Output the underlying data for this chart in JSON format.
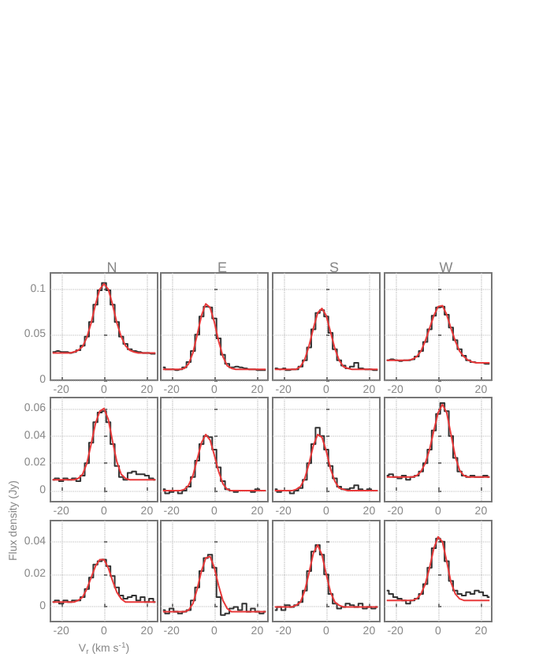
{
  "chart_data": [
    {
      "type": "line",
      "title": "N",
      "x": [
        -24,
        -22,
        -20,
        -18,
        -16,
        -14,
        -12,
        -10,
        -8,
        -6,
        -4,
        -2,
        0,
        2,
        4,
        6,
        8,
        10,
        12,
        14,
        16,
        18,
        20,
        22,
        24
      ],
      "xlim": [
        -25,
        25
      ],
      "xticks": [
        -20,
        0,
        20
      ],
      "ylim": [
        0,
        0.118
      ],
      "yticks": [
        0,
        0.05,
        0.1
      ],
      "grid": true,
      "series": [
        {
          "type": "step",
          "color": "#333333",
          "values": [
            0.031,
            0.032,
            0.031,
            0.031,
            0.03,
            0.031,
            0.033,
            0.038,
            0.048,
            0.064,
            0.083,
            0.099,
            0.107,
            0.099,
            0.083,
            0.064,
            0.048,
            0.04,
            0.034,
            0.032,
            0.031,
            0.03,
            0.03,
            0.029,
            0.029
          ]
        },
        {
          "type": "line",
          "color": "#e8393a",
          "values": [
            0.03,
            0.03,
            0.03,
            0.03,
            0.03,
            0.031,
            0.033,
            0.037,
            0.047,
            0.063,
            0.083,
            0.1,
            0.106,
            0.1,
            0.083,
            0.063,
            0.048,
            0.038,
            0.033,
            0.031,
            0.03,
            0.03,
            0.03,
            0.03,
            0.03
          ]
        }
      ]
    },
    {
      "type": "line",
      "title": "E",
      "x": [
        -24,
        -22,
        -20,
        -18,
        -16,
        -14,
        -12,
        -10,
        -8,
        -6,
        -4,
        -2,
        0,
        2,
        4,
        6,
        8,
        10,
        12,
        14,
        16,
        18,
        20,
        22,
        24
      ],
      "xlim": [
        -25,
        25
      ],
      "xticks": [
        -20,
        0,
        20
      ],
      "ylim": [
        0,
        0.118
      ],
      "yticks": [
        0,
        0.05,
        0.1
      ],
      "grid": true,
      "tick_labels": "x",
      "series": [
        {
          "type": "step",
          "color": "#333333",
          "values": [
            0.014,
            0.012,
            0.012,
            0.011,
            0.012,
            0.014,
            0.02,
            0.032,
            0.05,
            0.07,
            0.081,
            0.08,
            0.068,
            0.046,
            0.028,
            0.018,
            0.014,
            0.015,
            0.014,
            0.013,
            0.012,
            0.012,
            0.011,
            0.011,
            0.011
          ]
        },
        {
          "type": "line",
          "color": "#e8393a",
          "values": [
            0.012,
            0.012,
            0.012,
            0.012,
            0.012,
            0.013,
            0.018,
            0.03,
            0.05,
            0.071,
            0.084,
            0.08,
            0.064,
            0.043,
            0.026,
            0.016,
            0.013,
            0.012,
            0.012,
            0.012,
            0.012,
            0.012,
            0.012,
            0.012,
            0.012
          ]
        }
      ]
    },
    {
      "type": "line",
      "title": "S",
      "x": [
        -24,
        -22,
        -20,
        -18,
        -16,
        -14,
        -12,
        -10,
        -8,
        -6,
        -4,
        -2,
        0,
        2,
        4,
        6,
        8,
        10,
        12,
        14,
        16,
        18,
        20,
        22,
        24
      ],
      "xlim": [
        -25,
        25
      ],
      "xticks": [
        -20,
        0,
        20
      ],
      "ylim": [
        0,
        0.118
      ],
      "yticks": [
        0,
        0.05,
        0.1
      ],
      "grid": true,
      "tick_labels": "x",
      "series": [
        {
          "type": "step",
          "color": "#333333",
          "values": [
            0.013,
            0.012,
            0.013,
            0.011,
            0.012,
            0.012,
            0.015,
            0.022,
            0.036,
            0.056,
            0.074,
            0.077,
            0.07,
            0.052,
            0.034,
            0.022,
            0.016,
            0.013,
            0.015,
            0.019,
            0.013,
            0.012,
            0.012,
            0.011,
            0.011
          ]
        },
        {
          "type": "line",
          "color": "#e8393a",
          "values": [
            0.012,
            0.012,
            0.012,
            0.012,
            0.012,
            0.012,
            0.015,
            0.023,
            0.038,
            0.057,
            0.074,
            0.079,
            0.071,
            0.053,
            0.035,
            0.022,
            0.015,
            0.013,
            0.012,
            0.012,
            0.012,
            0.012,
            0.012,
            0.012,
            0.012
          ]
        }
      ]
    },
    {
      "type": "line",
      "title": "W",
      "x": [
        -24,
        -22,
        -20,
        -18,
        -16,
        -14,
        -12,
        -10,
        -8,
        -6,
        -4,
        -2,
        0,
        2,
        4,
        6,
        8,
        10,
        12,
        14,
        16,
        18,
        20,
        22,
        24
      ],
      "xlim": [
        -25,
        25
      ],
      "xticks": [
        -20,
        0,
        20
      ],
      "ylim": [
        0,
        0.118
      ],
      "yticks": [
        0,
        0.05,
        0.1
      ],
      "grid": true,
      "tick_labels": "x",
      "series": [
        {
          "type": "step",
          "color": "#333333",
          "values": [
            0.022,
            0.023,
            0.022,
            0.021,
            0.022,
            0.022,
            0.023,
            0.026,
            0.032,
            0.042,
            0.056,
            0.071,
            0.08,
            0.081,
            0.072,
            0.058,
            0.044,
            0.034,
            0.027,
            0.022,
            0.02,
            0.019,
            0.019,
            0.018,
            0.018
          ]
        },
        {
          "type": "line",
          "color": "#e8393a",
          "values": [
            0.022,
            0.022,
            0.022,
            0.022,
            0.022,
            0.022,
            0.023,
            0.026,
            0.032,
            0.043,
            0.057,
            0.071,
            0.081,
            0.082,
            0.072,
            0.057,
            0.043,
            0.032,
            0.026,
            0.022,
            0.02,
            0.019,
            0.019,
            0.019,
            0.019
          ]
        }
      ]
    },
    {
      "type": "line",
      "x": [
        -24,
        -22,
        -20,
        -18,
        -16,
        -14,
        -12,
        -10,
        -8,
        -6,
        -4,
        -2,
        0,
        2,
        4,
        6,
        8,
        10,
        12,
        14,
        16,
        18,
        20,
        22,
        24
      ],
      "xlim": [
        -25,
        25
      ],
      "xticks": [
        -20,
        0,
        20
      ],
      "ylim": [
        -0.008,
        0.068
      ],
      "yticks": [
        0,
        0.02,
        0.04,
        0.06
      ],
      "grid": true,
      "series": [
        {
          "type": "step",
          "color": "#333333",
          "values": [
            0.008,
            0.009,
            0.007,
            0.009,
            0.008,
            0.009,
            0.007,
            0.011,
            0.02,
            0.035,
            0.05,
            0.057,
            0.058,
            0.05,
            0.034,
            0.018,
            0.01,
            0.008,
            0.013,
            0.014,
            0.012,
            0.012,
            0.011,
            0.009,
            0.008
          ]
        },
        {
          "type": "line",
          "color": "#e8393a",
          "values": [
            0.008,
            0.008,
            0.008,
            0.008,
            0.008,
            0.008,
            0.009,
            0.012,
            0.02,
            0.034,
            0.049,
            0.058,
            0.06,
            0.052,
            0.036,
            0.021,
            0.012,
            0.009,
            0.008,
            0.008,
            0.008,
            0.008,
            0.008,
            0.008,
            0.008
          ]
        }
      ]
    },
    {
      "type": "line",
      "x": [
        -24,
        -22,
        -20,
        -18,
        -16,
        -14,
        -12,
        -10,
        -8,
        -6,
        -4,
        -2,
        0,
        2,
        4,
        6,
        8,
        10,
        12,
        14,
        16,
        18,
        20,
        22,
        24
      ],
      "xlim": [
        -25,
        25
      ],
      "xticks": [
        -20,
        0,
        20
      ],
      "ylim": [
        -0.008,
        0.068
      ],
      "yticks": [
        0,
        0.02,
        0.04,
        0.06
      ],
      "grid": true,
      "tick_labels": "x",
      "series": [
        {
          "type": "step",
          "color": "#333333",
          "values": [
            0.001,
            -0.002,
            -0.001,
            0.0,
            -0.002,
            0.0,
            0.003,
            0.01,
            0.022,
            0.034,
            0.04,
            0.039,
            0.03,
            0.017,
            0.007,
            0.001,
            0.0,
            -0.001,
            0.0,
            0.0,
            0.0,
            -0.001,
            0.001,
            0.0,
            0.0
          ]
        },
        {
          "type": "line",
          "color": "#e8393a",
          "values": [
            0.0,
            0.0,
            0.0,
            0.0,
            0.0,
            0.001,
            0.004,
            0.011,
            0.023,
            0.035,
            0.041,
            0.037,
            0.026,
            0.014,
            0.005,
            0.001,
            0.0,
            0.0,
            0.0,
            0.0,
            0.0,
            0.0,
            0.0,
            0.0,
            0.0
          ]
        }
      ]
    },
    {
      "type": "line",
      "x": [
        -24,
        -22,
        -20,
        -18,
        -16,
        -14,
        -12,
        -10,
        -8,
        -6,
        -4,
        -2,
        0,
        2,
        4,
        6,
        8,
        10,
        12,
        14,
        16,
        18,
        20,
        22,
        24
      ],
      "xlim": [
        -25,
        25
      ],
      "xticks": [
        -20,
        0,
        20
      ],
      "ylim": [
        -0.008,
        0.068
      ],
      "yticks": [
        0,
        0.02,
        0.04,
        0.06
      ],
      "grid": true,
      "tick_labels": "x",
      "series": [
        {
          "type": "step",
          "color": "#333333",
          "values": [
            0.001,
            -0.001,
            0.0,
            0.0,
            -0.002,
            0.0,
            0.002,
            0.008,
            0.02,
            0.034,
            0.046,
            0.04,
            0.03,
            0.018,
            0.009,
            0.003,
            0.001,
            0.001,
            0.002,
            0.004,
            0.001,
            0.0,
            0.001,
            0.0,
            0.0
          ]
        },
        {
          "type": "line",
          "color": "#e8393a",
          "values": [
            0.0,
            0.0,
            0.0,
            0.0,
            0.0,
            0.001,
            0.003,
            0.009,
            0.02,
            0.033,
            0.041,
            0.039,
            0.029,
            0.016,
            0.007,
            0.002,
            0.001,
            0.0,
            0.0,
            0.0,
            0.0,
            0.0,
            0.0,
            0.0,
            0.0
          ]
        }
      ]
    },
    {
      "type": "line",
      "x": [
        -24,
        -22,
        -20,
        -18,
        -16,
        -14,
        -12,
        -10,
        -8,
        -6,
        -4,
        -2,
        0,
        2,
        4,
        6,
        8,
        10,
        12,
        14,
        16,
        18,
        20,
        22,
        24
      ],
      "xlim": [
        -25,
        25
      ],
      "xticks": [
        -20,
        0,
        20
      ],
      "ylim": [
        -0.008,
        0.068
      ],
      "yticks": [
        0,
        0.02,
        0.04,
        0.06
      ],
      "grid": true,
      "tick_labels": "x",
      "series": [
        {
          "type": "step",
          "color": "#333333",
          "values": [
            0.011,
            0.012,
            0.01,
            0.009,
            0.011,
            0.008,
            0.01,
            0.011,
            0.014,
            0.02,
            0.03,
            0.044,
            0.056,
            0.064,
            0.058,
            0.04,
            0.024,
            0.014,
            0.011,
            0.01,
            0.011,
            0.01,
            0.01,
            0.011,
            0.01
          ]
        },
        {
          "type": "line",
          "color": "#e8393a",
          "values": [
            0.01,
            0.01,
            0.01,
            0.01,
            0.01,
            0.01,
            0.01,
            0.011,
            0.014,
            0.02,
            0.03,
            0.044,
            0.057,
            0.063,
            0.057,
            0.041,
            0.025,
            0.015,
            0.011,
            0.01,
            0.01,
            0.01,
            0.01,
            0.01,
            0.01
          ]
        }
      ]
    },
    {
      "type": "line",
      "xlabel": "V$_{r}$ (km s$^{-1}$)",
      "ylabel": "Flux density (Jy)",
      "x": [
        -24,
        -22,
        -20,
        -18,
        -16,
        -14,
        -12,
        -10,
        -8,
        -6,
        -4,
        -2,
        0,
        2,
        4,
        6,
        8,
        10,
        12,
        14,
        16,
        18,
        20,
        22,
        24
      ],
      "xlim": [
        -25,
        25
      ],
      "xticks": [
        -20,
        0,
        20
      ],
      "ylim": [
        -0.009,
        0.053
      ],
      "yticks": [
        0,
        0.02,
        0.04
      ],
      "grid": true,
      "series": [
        {
          "type": "step",
          "color": "#333333",
          "values": [
            0.003,
            0.004,
            0.002,
            0.004,
            0.003,
            0.004,
            0.004,
            0.006,
            0.011,
            0.018,
            0.026,
            0.028,
            0.029,
            0.025,
            0.019,
            0.012,
            0.007,
            0.005,
            0.006,
            0.007,
            0.004,
            0.006,
            0.003,
            0.005,
            0.003
          ]
        },
        {
          "type": "line",
          "color": "#e8393a",
          "values": [
            0.003,
            0.003,
            0.003,
            0.003,
            0.003,
            0.003,
            0.004,
            0.006,
            0.011,
            0.018,
            0.025,
            0.029,
            0.029,
            0.024,
            0.016,
            0.009,
            0.005,
            0.003,
            0.003,
            0.003,
            0.003,
            0.003,
            0.003,
            0.003,
            0.003
          ]
        }
      ]
    },
    {
      "type": "line",
      "x": [
        -24,
        -22,
        -20,
        -18,
        -16,
        -14,
        -12,
        -10,
        -8,
        -6,
        -4,
        -2,
        0,
        2,
        4,
        6,
        8,
        10,
        12,
        14,
        16,
        18,
        20,
        22,
        24
      ],
      "xlim": [
        -25,
        25
      ],
      "xticks": [
        -20,
        0,
        20
      ],
      "ylim": [
        -0.009,
        0.053
      ],
      "yticks": [
        0,
        0.02,
        0.04
      ],
      "grid": true,
      "tick_labels": "x",
      "series": [
        {
          "type": "step",
          "color": "#333333",
          "values": [
            -0.002,
            -0.004,
            -0.001,
            -0.003,
            -0.004,
            -0.003,
            -0.002,
            0.004,
            0.012,
            0.022,
            0.03,
            0.032,
            0.024,
            0.006,
            -0.005,
            -0.004,
            -0.001,
            0.0,
            -0.002,
            0.002,
            -0.003,
            -0.001,
            -0.003,
            -0.004,
            -0.003
          ]
        },
        {
          "type": "line",
          "color": "#e8393a",
          "values": [
            -0.003,
            -0.003,
            -0.003,
            -0.003,
            -0.003,
            -0.003,
            -0.002,
            0.002,
            0.011,
            0.022,
            0.03,
            0.031,
            0.024,
            0.013,
            0.004,
            -0.001,
            -0.003,
            -0.003,
            -0.003,
            -0.003,
            -0.003,
            -0.003,
            -0.003,
            -0.003,
            -0.003
          ]
        }
      ]
    },
    {
      "type": "line",
      "x": [
        -24,
        -22,
        -20,
        -18,
        -16,
        -14,
        -12,
        -10,
        -8,
        -6,
        -4,
        -2,
        0,
        2,
        4,
        6,
        8,
        10,
        12,
        14,
        16,
        18,
        20,
        22,
        24
      ],
      "xlim": [
        -25,
        25
      ],
      "xticks": [
        -20,
        0,
        20
      ],
      "ylim": [
        -0.009,
        0.053
      ],
      "yticks": [
        0,
        0.02,
        0.04
      ],
      "grid": true,
      "tick_labels": "x",
      "series": [
        {
          "type": "step",
          "color": "#333333",
          "values": [
            -0.002,
            0.0,
            -0.002,
            0.001,
            0.0,
            0.001,
            0.003,
            0.01,
            0.022,
            0.034,
            0.038,
            0.032,
            0.02,
            0.008,
            0.002,
            -0.001,
            0.0,
            0.002,
            0.001,
            0.0,
            0.002,
            -0.001,
            0.0,
            -0.001,
            0.0
          ]
        },
        {
          "type": "line",
          "color": "#e8393a",
          "values": [
            0.0,
            0.0,
            0.0,
            0.0,
            0.0,
            0.001,
            0.003,
            0.01,
            0.021,
            0.033,
            0.038,
            0.032,
            0.02,
            0.009,
            0.003,
            0.001,
            0.0,
            0.0,
            0.0,
            0.0,
            0.0,
            0.0,
            0.0,
            0.0,
            0.0
          ]
        }
      ]
    },
    {
      "type": "line",
      "x": [
        -24,
        -22,
        -20,
        -18,
        -16,
        -14,
        -12,
        -10,
        -8,
        -6,
        -4,
        -2,
        0,
        2,
        4,
        6,
        8,
        10,
        12,
        14,
        16,
        18,
        20,
        22,
        24
      ],
      "xlim": [
        -25,
        25
      ],
      "xticks": [
        -20,
        0,
        20
      ],
      "ylim": [
        -0.009,
        0.053
      ],
      "yticks": [
        0,
        0.02,
        0.04
      ],
      "grid": true,
      "tick_labels": "x",
      "series": [
        {
          "type": "step",
          "color": "#333333",
          "values": [
            0.01,
            0.008,
            0.006,
            0.005,
            0.004,
            0.002,
            0.004,
            0.005,
            0.008,
            0.014,
            0.024,
            0.036,
            0.042,
            0.04,
            0.028,
            0.016,
            0.01,
            0.008,
            0.007,
            0.009,
            0.008,
            0.01,
            0.009,
            0.007,
            0.006
          ]
        },
        {
          "type": "line",
          "color": "#e8393a",
          "values": [
            0.004,
            0.004,
            0.004,
            0.004,
            0.004,
            0.004,
            0.004,
            0.005,
            0.008,
            0.014,
            0.024,
            0.036,
            0.043,
            0.04,
            0.028,
            0.015,
            0.008,
            0.005,
            0.004,
            0.004,
            0.004,
            0.004,
            0.004,
            0.004,
            0.004
          ]
        }
      ]
    }
  ]
}
